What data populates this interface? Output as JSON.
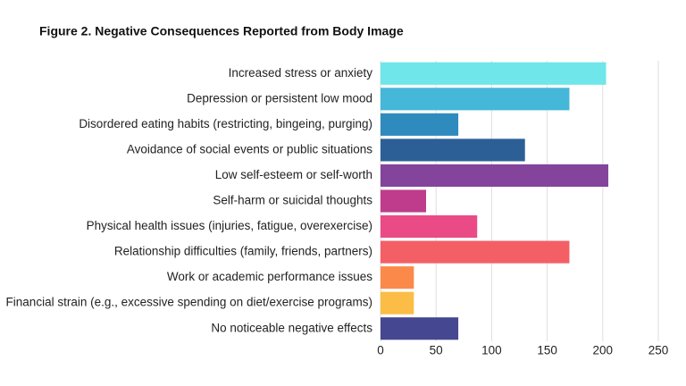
{
  "chart_data": {
    "type": "barh",
    "title": "Figure 2. Negative Consequences Reported from Body Image",
    "categories": [
      "Increased stress or anxiety",
      "Depression or persistent low mood",
      "Disordered eating habits (restricting, bingeing, purging)",
      "Avoidance of social events or public situations",
      "Low self-esteem or self-worth",
      "Self-harm or suicidal thoughts",
      "Physical health issues (injuries, fatigue, overexercise)",
      "Relationship difficulties (family, friends, partners)",
      "Work or academic performance issues",
      "Financial strain (e.g., excessive spending on diet/exercise programs)",
      "No noticeable negative effects"
    ],
    "values": [
      203,
      170,
      70,
      130,
      205,
      41,
      87,
      170,
      30,
      30,
      70
    ],
    "colors": [
      "#6ee6ea",
      "#45b7d9",
      "#2f8bbd",
      "#2c5f96",
      "#84449c",
      "#bf3c8c",
      "#ea4a86",
      "#f45f66",
      "#fb8a4a",
      "#fbbd45",
      "#464791"
    ],
    "xlim": [
      0,
      250
    ],
    "xticks": [
      0,
      50,
      100,
      150,
      200,
      250
    ],
    "grid": true
  }
}
